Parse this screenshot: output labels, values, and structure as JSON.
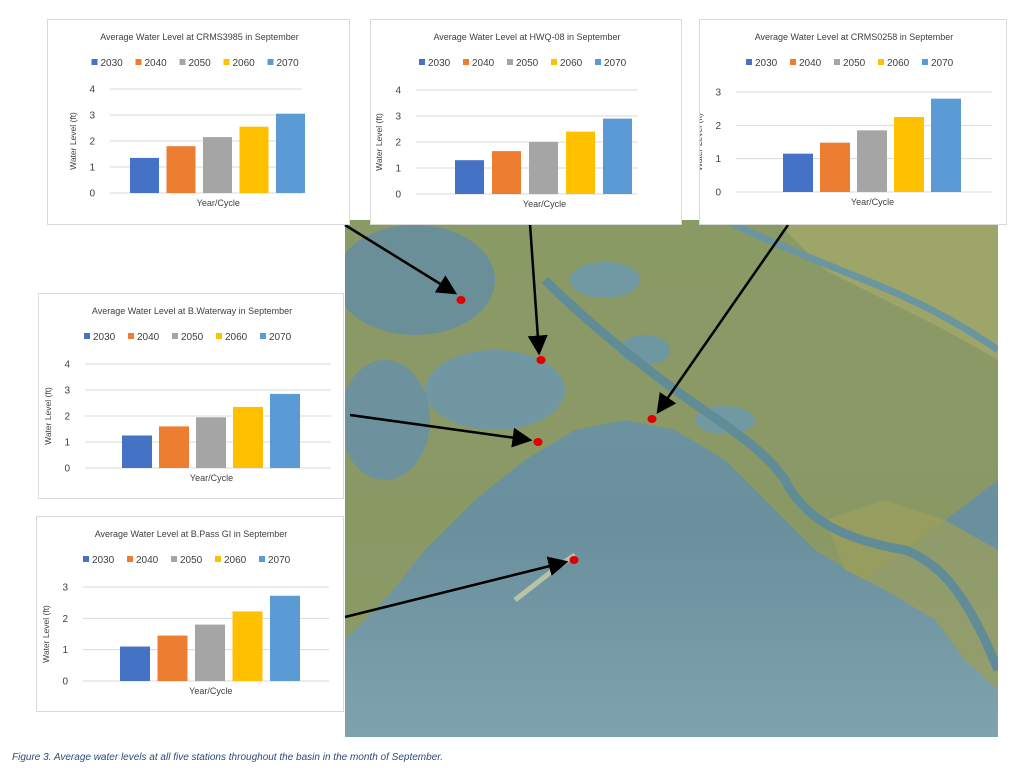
{
  "caption": "Figure 3. Average water levels at all five stations throughout the basin in the month of September.",
  "colors": {
    "2030": "#4472c4",
    "2040": "#ed7d31",
    "2050": "#a5a5a5",
    "2060": "#ffc000",
    "2070": "#5b9bd5"
  },
  "chart_data": [
    {
      "id": "crms3985",
      "type": "bar",
      "title": "Average Water Level at CRMS3985 in September",
      "xlabel": "Year/Cycle",
      "ylabel": "Water Level (ft)",
      "ylim": [
        0,
        4
      ],
      "yticks": [
        "0",
        "1",
        "2",
        "3",
        "4"
      ],
      "series": [
        {
          "name": "2030",
          "values": [
            1.35
          ]
        },
        {
          "name": "2040",
          "values": [
            1.8
          ]
        },
        {
          "name": "2050",
          "values": [
            2.15
          ]
        },
        {
          "name": "2060",
          "values": [
            2.55
          ]
        },
        {
          "name": "2070",
          "values": [
            3.05
          ]
        }
      ]
    },
    {
      "id": "hwq08",
      "type": "bar",
      "title": "Average Water Level at HWQ-08  in September",
      "xlabel": "Year/Cycle",
      "ylabel": "Water Level (ft)",
      "ylim": [
        0,
        4
      ],
      "yticks": [
        "0",
        "1",
        "2",
        "3",
        "4"
      ],
      "series": [
        {
          "name": "2030",
          "values": [
            1.3
          ]
        },
        {
          "name": "2040",
          "values": [
            1.65
          ]
        },
        {
          "name": "2050",
          "values": [
            2.0
          ]
        },
        {
          "name": "2060",
          "values": [
            2.4
          ]
        },
        {
          "name": "2070",
          "values": [
            2.9
          ]
        }
      ]
    },
    {
      "id": "crms0258",
      "type": "bar",
      "title": "Average Water Level at CRMS0258 in September",
      "xlabel": "Year/Cycle",
      "ylabel": "Water Level (ft)",
      "ylim": [
        0,
        3
      ],
      "yticks": [
        "0",
        "1",
        "2",
        "3"
      ],
      "series": [
        {
          "name": "2030",
          "values": [
            1.15
          ]
        },
        {
          "name": "2040",
          "values": [
            1.48
          ]
        },
        {
          "name": "2050",
          "values": [
            1.85
          ]
        },
        {
          "name": "2060",
          "values": [
            2.25
          ]
        },
        {
          "name": "2070",
          "values": [
            2.8
          ]
        }
      ]
    },
    {
      "id": "bwaterway",
      "type": "bar",
      "title": "Average Water Level at B.Waterway in September",
      "xlabel": "Year/Cycle",
      "ylabel": "Water Level (ft)",
      "ylim": [
        0,
        4
      ],
      "yticks": [
        "0",
        "1",
        "2",
        "3",
        "4"
      ],
      "series": [
        {
          "name": "2030",
          "values": [
            1.25
          ]
        },
        {
          "name": "2040",
          "values": [
            1.6
          ]
        },
        {
          "name": "2050",
          "values": [
            1.95
          ]
        },
        {
          "name": "2060",
          "values": [
            2.35
          ]
        },
        {
          "name": "2070",
          "values": [
            2.85
          ]
        }
      ]
    },
    {
      "id": "bpassgi",
      "type": "bar",
      "title": "Average Water Level at B.Pass GI in September",
      "xlabel": "Year/Cycle",
      "ylabel": "Water Level (ft)",
      "ylim": [
        0,
        3
      ],
      "yticks": [
        "0",
        "1",
        "2",
        "3"
      ],
      "series": [
        {
          "name": "2030",
          "values": [
            1.1
          ]
        },
        {
          "name": "2040",
          "values": [
            1.45
          ]
        },
        {
          "name": "2050",
          "values": [
            1.8
          ]
        },
        {
          "name": "2060",
          "values": [
            2.22
          ]
        },
        {
          "name": "2070",
          "values": [
            2.72
          ]
        }
      ]
    }
  ]
}
